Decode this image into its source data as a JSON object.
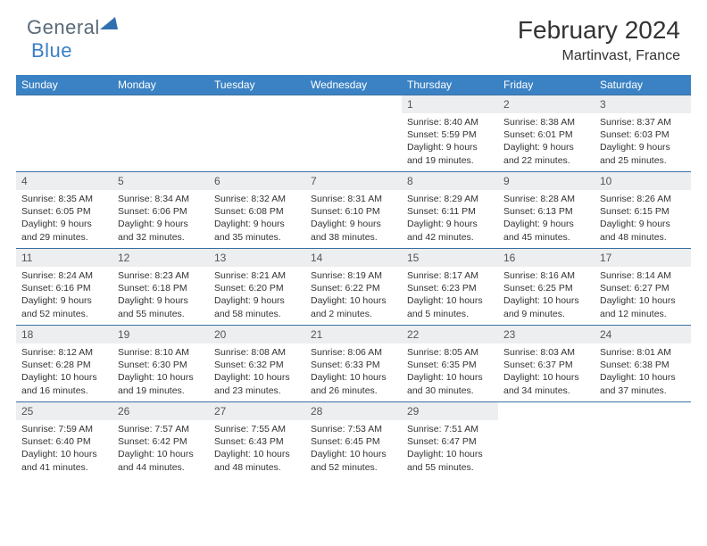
{
  "brand": {
    "part1": "General",
    "part2": "Blue"
  },
  "title": "February 2024",
  "location": "Martinvast, France",
  "colors": {
    "header_bg": "#3b82c4",
    "header_text": "#ffffff",
    "daynum_bg": "#eceef0",
    "border": "#3b6fa0",
    "brand_gray": "#5a6a78",
    "brand_blue": "#3b7fc4"
  },
  "days_of_week": [
    "Sunday",
    "Monday",
    "Tuesday",
    "Wednesday",
    "Thursday",
    "Friday",
    "Saturday"
  ],
  "weeks": [
    [
      null,
      null,
      null,
      null,
      {
        "num": "1",
        "sunrise": "8:40 AM",
        "sunset": "5:59 PM",
        "daylight": "9 hours and 19 minutes."
      },
      {
        "num": "2",
        "sunrise": "8:38 AM",
        "sunset": "6:01 PM",
        "daylight": "9 hours and 22 minutes."
      },
      {
        "num": "3",
        "sunrise": "8:37 AM",
        "sunset": "6:03 PM",
        "daylight": "9 hours and 25 minutes."
      }
    ],
    [
      {
        "num": "4",
        "sunrise": "8:35 AM",
        "sunset": "6:05 PM",
        "daylight": "9 hours and 29 minutes."
      },
      {
        "num": "5",
        "sunrise": "8:34 AM",
        "sunset": "6:06 PM",
        "daylight": "9 hours and 32 minutes."
      },
      {
        "num": "6",
        "sunrise": "8:32 AM",
        "sunset": "6:08 PM",
        "daylight": "9 hours and 35 minutes."
      },
      {
        "num": "7",
        "sunrise": "8:31 AM",
        "sunset": "6:10 PM",
        "daylight": "9 hours and 38 minutes."
      },
      {
        "num": "8",
        "sunrise": "8:29 AM",
        "sunset": "6:11 PM",
        "daylight": "9 hours and 42 minutes."
      },
      {
        "num": "9",
        "sunrise": "8:28 AM",
        "sunset": "6:13 PM",
        "daylight": "9 hours and 45 minutes."
      },
      {
        "num": "10",
        "sunrise": "8:26 AM",
        "sunset": "6:15 PM",
        "daylight": "9 hours and 48 minutes."
      }
    ],
    [
      {
        "num": "11",
        "sunrise": "8:24 AM",
        "sunset": "6:16 PM",
        "daylight": "9 hours and 52 minutes."
      },
      {
        "num": "12",
        "sunrise": "8:23 AM",
        "sunset": "6:18 PM",
        "daylight": "9 hours and 55 minutes."
      },
      {
        "num": "13",
        "sunrise": "8:21 AM",
        "sunset": "6:20 PM",
        "daylight": "9 hours and 58 minutes."
      },
      {
        "num": "14",
        "sunrise": "8:19 AM",
        "sunset": "6:22 PM",
        "daylight": "10 hours and 2 minutes."
      },
      {
        "num": "15",
        "sunrise": "8:17 AM",
        "sunset": "6:23 PM",
        "daylight": "10 hours and 5 minutes."
      },
      {
        "num": "16",
        "sunrise": "8:16 AM",
        "sunset": "6:25 PM",
        "daylight": "10 hours and 9 minutes."
      },
      {
        "num": "17",
        "sunrise": "8:14 AM",
        "sunset": "6:27 PM",
        "daylight": "10 hours and 12 minutes."
      }
    ],
    [
      {
        "num": "18",
        "sunrise": "8:12 AM",
        "sunset": "6:28 PM",
        "daylight": "10 hours and 16 minutes."
      },
      {
        "num": "19",
        "sunrise": "8:10 AM",
        "sunset": "6:30 PM",
        "daylight": "10 hours and 19 minutes."
      },
      {
        "num": "20",
        "sunrise": "8:08 AM",
        "sunset": "6:32 PM",
        "daylight": "10 hours and 23 minutes."
      },
      {
        "num": "21",
        "sunrise": "8:06 AM",
        "sunset": "6:33 PM",
        "daylight": "10 hours and 26 minutes."
      },
      {
        "num": "22",
        "sunrise": "8:05 AM",
        "sunset": "6:35 PM",
        "daylight": "10 hours and 30 minutes."
      },
      {
        "num": "23",
        "sunrise": "8:03 AM",
        "sunset": "6:37 PM",
        "daylight": "10 hours and 34 minutes."
      },
      {
        "num": "24",
        "sunrise": "8:01 AM",
        "sunset": "6:38 PM",
        "daylight": "10 hours and 37 minutes."
      }
    ],
    [
      {
        "num": "25",
        "sunrise": "7:59 AM",
        "sunset": "6:40 PM",
        "daylight": "10 hours and 41 minutes."
      },
      {
        "num": "26",
        "sunrise": "7:57 AM",
        "sunset": "6:42 PM",
        "daylight": "10 hours and 44 minutes."
      },
      {
        "num": "27",
        "sunrise": "7:55 AM",
        "sunset": "6:43 PM",
        "daylight": "10 hours and 48 minutes."
      },
      {
        "num": "28",
        "sunrise": "7:53 AM",
        "sunset": "6:45 PM",
        "daylight": "10 hours and 52 minutes."
      },
      {
        "num": "29",
        "sunrise": "7:51 AM",
        "sunset": "6:47 PM",
        "daylight": "10 hours and 55 minutes."
      },
      null,
      null
    ]
  ],
  "labels": {
    "sunrise": "Sunrise: ",
    "sunset": "Sunset: ",
    "daylight": "Daylight: "
  }
}
